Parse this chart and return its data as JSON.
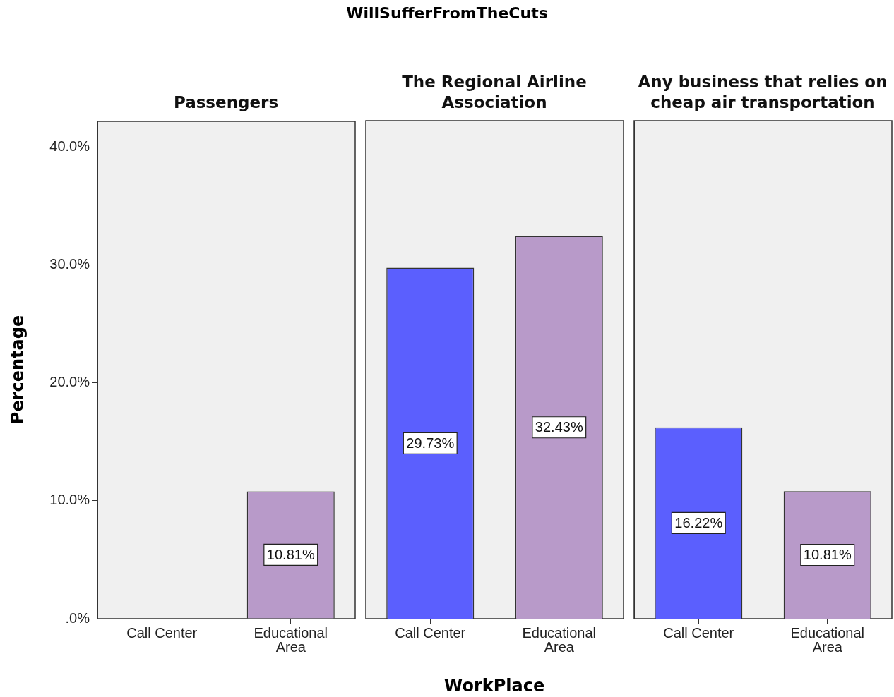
{
  "chart_data": [
    {
      "type": "bar",
      "title": "Passengers",
      "ylabel": "Percentage",
      "categories": [
        "Call Center",
        "Educational Area"
      ],
      "values": [
        null,
        10.81
      ],
      "colors": [
        "#5b5ffe",
        "#b89ac9"
      ],
      "value_labels": [
        null,
        "10.81%"
      ],
      "ylim": [
        0,
        42.2
      ],
      "yticks": [
        {
          "value": 0,
          "label": ".0%"
        },
        {
          "value": 10,
          "label": "10.0%"
        },
        {
          "value": 20,
          "label": "20.0%"
        },
        {
          "value": 30,
          "label": "30.0%"
        },
        {
          "value": 40,
          "label": "40.0%"
        }
      ],
      "grid": false,
      "legend": false
    },
    {
      "type": "bar",
      "title": "The Regional Airline Association",
      "xlabel": "WorkPlace",
      "annotations": [
        "WillSufferFromTheCuts"
      ],
      "categories": [
        "Call Center",
        "Educational Area"
      ],
      "values": [
        29.73,
        32.43
      ],
      "colors": [
        "#5b5ffe",
        "#b89ac9"
      ],
      "value_labels": [
        "29.73%",
        "32.43%"
      ],
      "ylim": [
        0,
        42.2
      ],
      "tick_labels": "x",
      "grid": false,
      "legend": false
    },
    {
      "type": "bar",
      "title": "Any business that relies on cheap air transportation",
      "categories": [
        "Call Center",
        "Educational Area"
      ],
      "values": [
        16.22,
        10.81
      ],
      "colors": [
        "#5b5ffe",
        "#b89ac9"
      ],
      "value_labels": [
        "16.22%",
        "10.81%"
      ],
      "ylim": [
        0,
        42.2
      ],
      "tick_labels": "x",
      "grid": false,
      "legend": false
    }
  ]
}
